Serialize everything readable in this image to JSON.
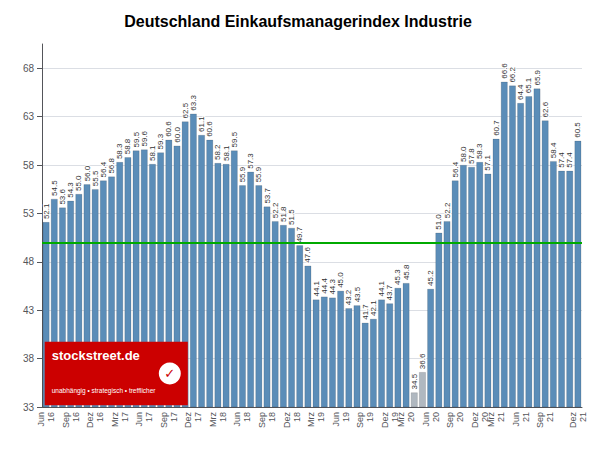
{
  "chart_data": {
    "type": "bar",
    "title": "Deutschland Einkaufsmanagerindex Industrie",
    "categories": [
      "Jun\n16",
      null,
      null,
      "Sep\n16",
      null,
      null,
      "Dez\n16",
      null,
      null,
      "Mrz\n17",
      null,
      null,
      "Jun\n17",
      null,
      null,
      "Sep\n17",
      null,
      null,
      "Dez\n17",
      null,
      null,
      "Mrz\n18",
      null,
      null,
      "Jun\n18",
      null,
      null,
      "Sep\n18",
      null,
      null,
      "Dez\n18",
      null,
      null,
      "Mrz\n19",
      null,
      null,
      "Jun\n19",
      null,
      null,
      "Sep\n19",
      null,
      null,
      "Dez\n19",
      null,
      "Mrz\n20",
      null,
      null,
      "Jun\n20",
      null,
      null,
      "Sep\n20",
      null,
      null,
      "Dez\n20",
      null,
      "Mrz\n21",
      null,
      null,
      "Jun\n21",
      null,
      null,
      "Sep\n21",
      null,
      null,
      null,
      "Dez\n21"
    ],
    "values": [
      52.1,
      54.5,
      53.6,
      54.3,
      55.0,
      56.0,
      55.5,
      56.4,
      56.8,
      58.3,
      58.8,
      59.5,
      59.6,
      58.1,
      59.3,
      60.6,
      60.0,
      62.5,
      63.3,
      61.1,
      60.6,
      58.2,
      58.1,
      59.5,
      55.9,
      57.3,
      55.9,
      53.7,
      52.2,
      51.8,
      51.5,
      49.7,
      47.6,
      44.1,
      44.4,
      44.3,
      45.0,
      43.2,
      43.5,
      41.7,
      42.1,
      44.1,
      43.7,
      45.3,
      45.8,
      34.5,
      36.6,
      45.2,
      51.0,
      52.2,
      56.4,
      58.0,
      57.8,
      58.3,
      57.1,
      60.7,
      66.6,
      66.2,
      64.4,
      65.1,
      65.9,
      62.6,
      58.4,
      57.4,
      57.4,
      60.5
    ],
    "value_labels": [
      "52.1",
      "54.5",
      "53.6",
      "54.3",
      "55.0",
      "56.0",
      "55.5",
      "56.4",
      "56.8",
      "58.3",
      "58.8",
      "59.5",
      "59.6",
      "58.1",
      "59.3",
      "60.6",
      "60.0",
      "62.5",
      "63.3",
      "61.1",
      "60.6",
      "58.2",
      "58.1",
      "59.5",
      "55.9",
      "57.3",
      "55.9",
      "53.7",
      "52.2",
      "51.8",
      "51.5",
      "49.7",
      "47.6",
      "44.1",
      "44.4",
      "44.3",
      "45.0",
      "43.2",
      "43.5",
      "41.7",
      "42.1",
      "44.1",
      "43.7",
      "45.3",
      "45.8",
      "34.5",
      "36.6",
      "45.2",
      "51.0",
      "52.2",
      "56.4",
      "58.0",
      "57.8",
      "58.3",
      "57.1",
      "60.7",
      "66.6",
      "66.2",
      "64.4",
      "65.1",
      "65.9",
      "62.6",
      "58.4",
      "57.4",
      "57.4",
      "60.5"
    ],
    "colors": [
      "#5b8db8",
      "#5b8db8",
      "#5b8db8",
      "#5b8db8",
      "#5b8db8",
      "#5b8db8",
      "#5b8db8",
      "#5b8db8",
      "#5b8db8",
      "#5b8db8",
      "#5b8db8",
      "#5b8db8",
      "#5b8db8",
      "#5b8db8",
      "#5b8db8",
      "#5b8db8",
      "#5b8db8",
      "#5b8db8",
      "#5b8db8",
      "#5b8db8",
      "#5b8db8",
      "#5b8db8",
      "#5b8db8",
      "#5b8db8",
      "#5b8db8",
      "#5b8db8",
      "#5b8db8",
      "#5b8db8",
      "#5b8db8",
      "#5b8db8",
      "#5b8db8",
      "#5b8db8",
      "#5b8db8",
      "#5b8db8",
      "#5b8db8",
      "#5b8db8",
      "#5b8db8",
      "#5b8db8",
      "#5b8db8",
      "#5b8db8",
      "#5b8db8",
      "#5b8db8",
      "#5b8db8",
      "#5b8db8",
      "#5b8db8",
      "#b0b8c0",
      "#b0b8c0",
      "#5b8db8",
      "#5b8db8",
      "#5b8db8",
      "#5b8db8",
      "#5b8db8",
      "#5b8db8",
      "#5b8db8",
      "#5b8db8",
      "#5b8db8",
      "#5b8db8",
      "#5b8db8",
      "#5b8db8",
      "#5b8db8",
      "#5b8db8",
      "#5b8db8",
      "#5b8db8",
      "#5b8db8",
      "#5b8db8",
      "#5b8db8"
    ],
    "data_labels": true,
    "ylim": [
      33,
      70.5
    ],
    "yticks": [
      33,
      38,
      43,
      48,
      53,
      58,
      63,
      68
    ],
    "grid": true,
    "reference_line": {
      "value": 50.0,
      "color": "#00aa00"
    },
    "watermark": {
      "text": "stockstreet.de",
      "subtitle": "unabhängig • strategisch • trefflicher",
      "symbol": "✓",
      "color": "#cc0000"
    }
  }
}
